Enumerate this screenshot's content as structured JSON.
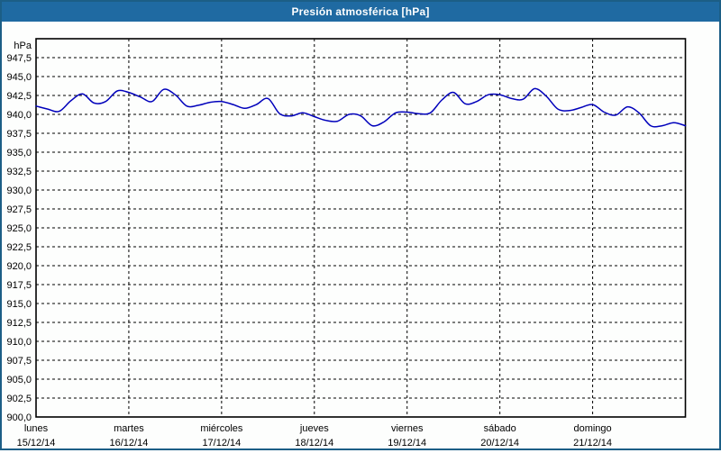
{
  "window": {
    "title": "Presión atmosférica [hPa]"
  },
  "colors": {
    "title_bar_bg": "#1F6AA2",
    "window_border": "#1C5E86",
    "plot_frame": "#000000",
    "grid": "#000000",
    "text": "#000000",
    "line": "#0000BB",
    "background": "#FDFEFD"
  },
  "chart_data": {
    "type": "line",
    "title": "Presión atmosférica [hPa]",
    "ylabel": "hPa",
    "ylim": [
      900,
      950
    ],
    "ytick_step": 2.5,
    "ytick_labels": [
      "900,0",
      "902,5",
      "905,0",
      "907,5",
      "910,0",
      "912,5",
      "915,0",
      "917,5",
      "920,0",
      "922,5",
      "925,0",
      "927,5",
      "930,0",
      "932,5",
      "935,0",
      "937,5",
      "940,0",
      "942,5",
      "945,0",
      "947,5"
    ],
    "grid": "dashed",
    "legend": "none",
    "x_categories": [
      {
        "day": "lunes",
        "date": "15/12/14"
      },
      {
        "day": "martes",
        "date": "16/12/14"
      },
      {
        "day": "miércoles",
        "date": "17/12/14"
      },
      {
        "day": "jueves",
        "date": "18/12/14"
      },
      {
        "day": "viernes",
        "date": "19/12/14"
      },
      {
        "day": "sábado",
        "date": "20/12/14"
      },
      {
        "day": "domingo",
        "date": "21/12/14"
      }
    ],
    "samples_per_day": 8,
    "series": [
      {
        "name": "Presión atmosférica [hPa]",
        "values": [
          941.1,
          940.7,
          940.4,
          941.8,
          942.7,
          941.5,
          941.7,
          943.1,
          942.9,
          942.3,
          941.7,
          943.3,
          942.6,
          941.1,
          941.2,
          941.6,
          941.7,
          941.3,
          940.8,
          941.3,
          942.1,
          940.1,
          939.8,
          940.2,
          939.7,
          939.2,
          939.1,
          940.0,
          939.8,
          938.5,
          939.0,
          940.2,
          940.3,
          940.1,
          940.2,
          941.9,
          942.9,
          941.4,
          941.7,
          942.6,
          942.6,
          942.1,
          942.0,
          943.4,
          942.4,
          940.7,
          940.5,
          940.9,
          941.3,
          940.3,
          939.9,
          941.0,
          940.2,
          938.5,
          938.5,
          938.9,
          938.5
        ]
      }
    ]
  }
}
